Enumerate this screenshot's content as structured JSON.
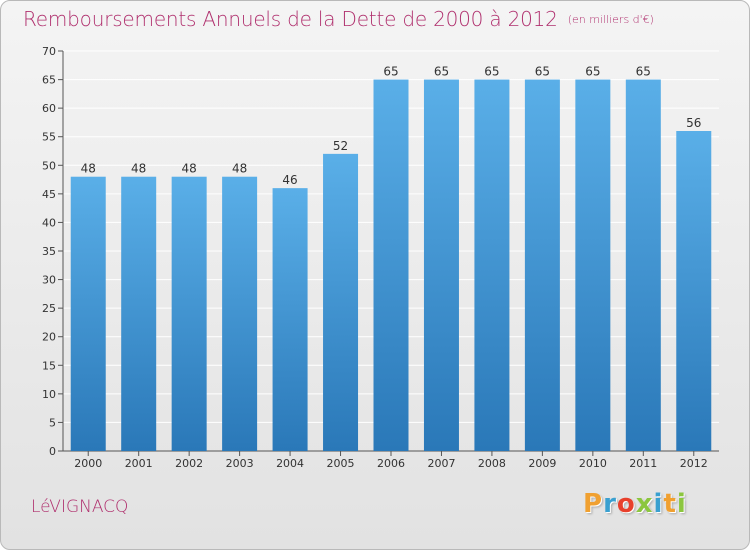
{
  "header": {
    "title": "Remboursements Annuels de la Dette de 2000 à 2012",
    "unit": "(en milliers d'€)"
  },
  "footer": {
    "commune": "LéVIGNACQ",
    "logo_letters": [
      "P",
      "r",
      "o",
      "x",
      "i",
      "t",
      "i"
    ],
    "logo_colors": [
      "#f0a030",
      "#3aa0d0",
      "#e8402c",
      "#8cc63f",
      "#3aa0d0",
      "#f0a030",
      "#8cc63f"
    ]
  },
  "colors": {
    "bar_top": "#5aafe8",
    "bar_bottom": "#2a78b8",
    "title": "#b0306e",
    "grid": "#ffffff"
  },
  "chart_data": {
    "type": "bar",
    "title": "Remboursements Annuels de la Dette de 2000 à 2012",
    "xlabel": "",
    "ylabel": "",
    "categories": [
      "2000",
      "2001",
      "2002",
      "2003",
      "2004",
      "2005",
      "2006",
      "2007",
      "2008",
      "2009",
      "2010",
      "2011",
      "2012"
    ],
    "values": [
      48,
      48,
      48,
      48,
      46,
      52,
      65,
      65,
      65,
      65,
      65,
      65,
      56
    ],
    "ylim": [
      0,
      70
    ],
    "yticks": [
      0,
      5,
      10,
      15,
      20,
      25,
      30,
      35,
      40,
      45,
      50,
      55,
      60,
      65,
      70
    ],
    "grid": true,
    "legend": "none"
  }
}
